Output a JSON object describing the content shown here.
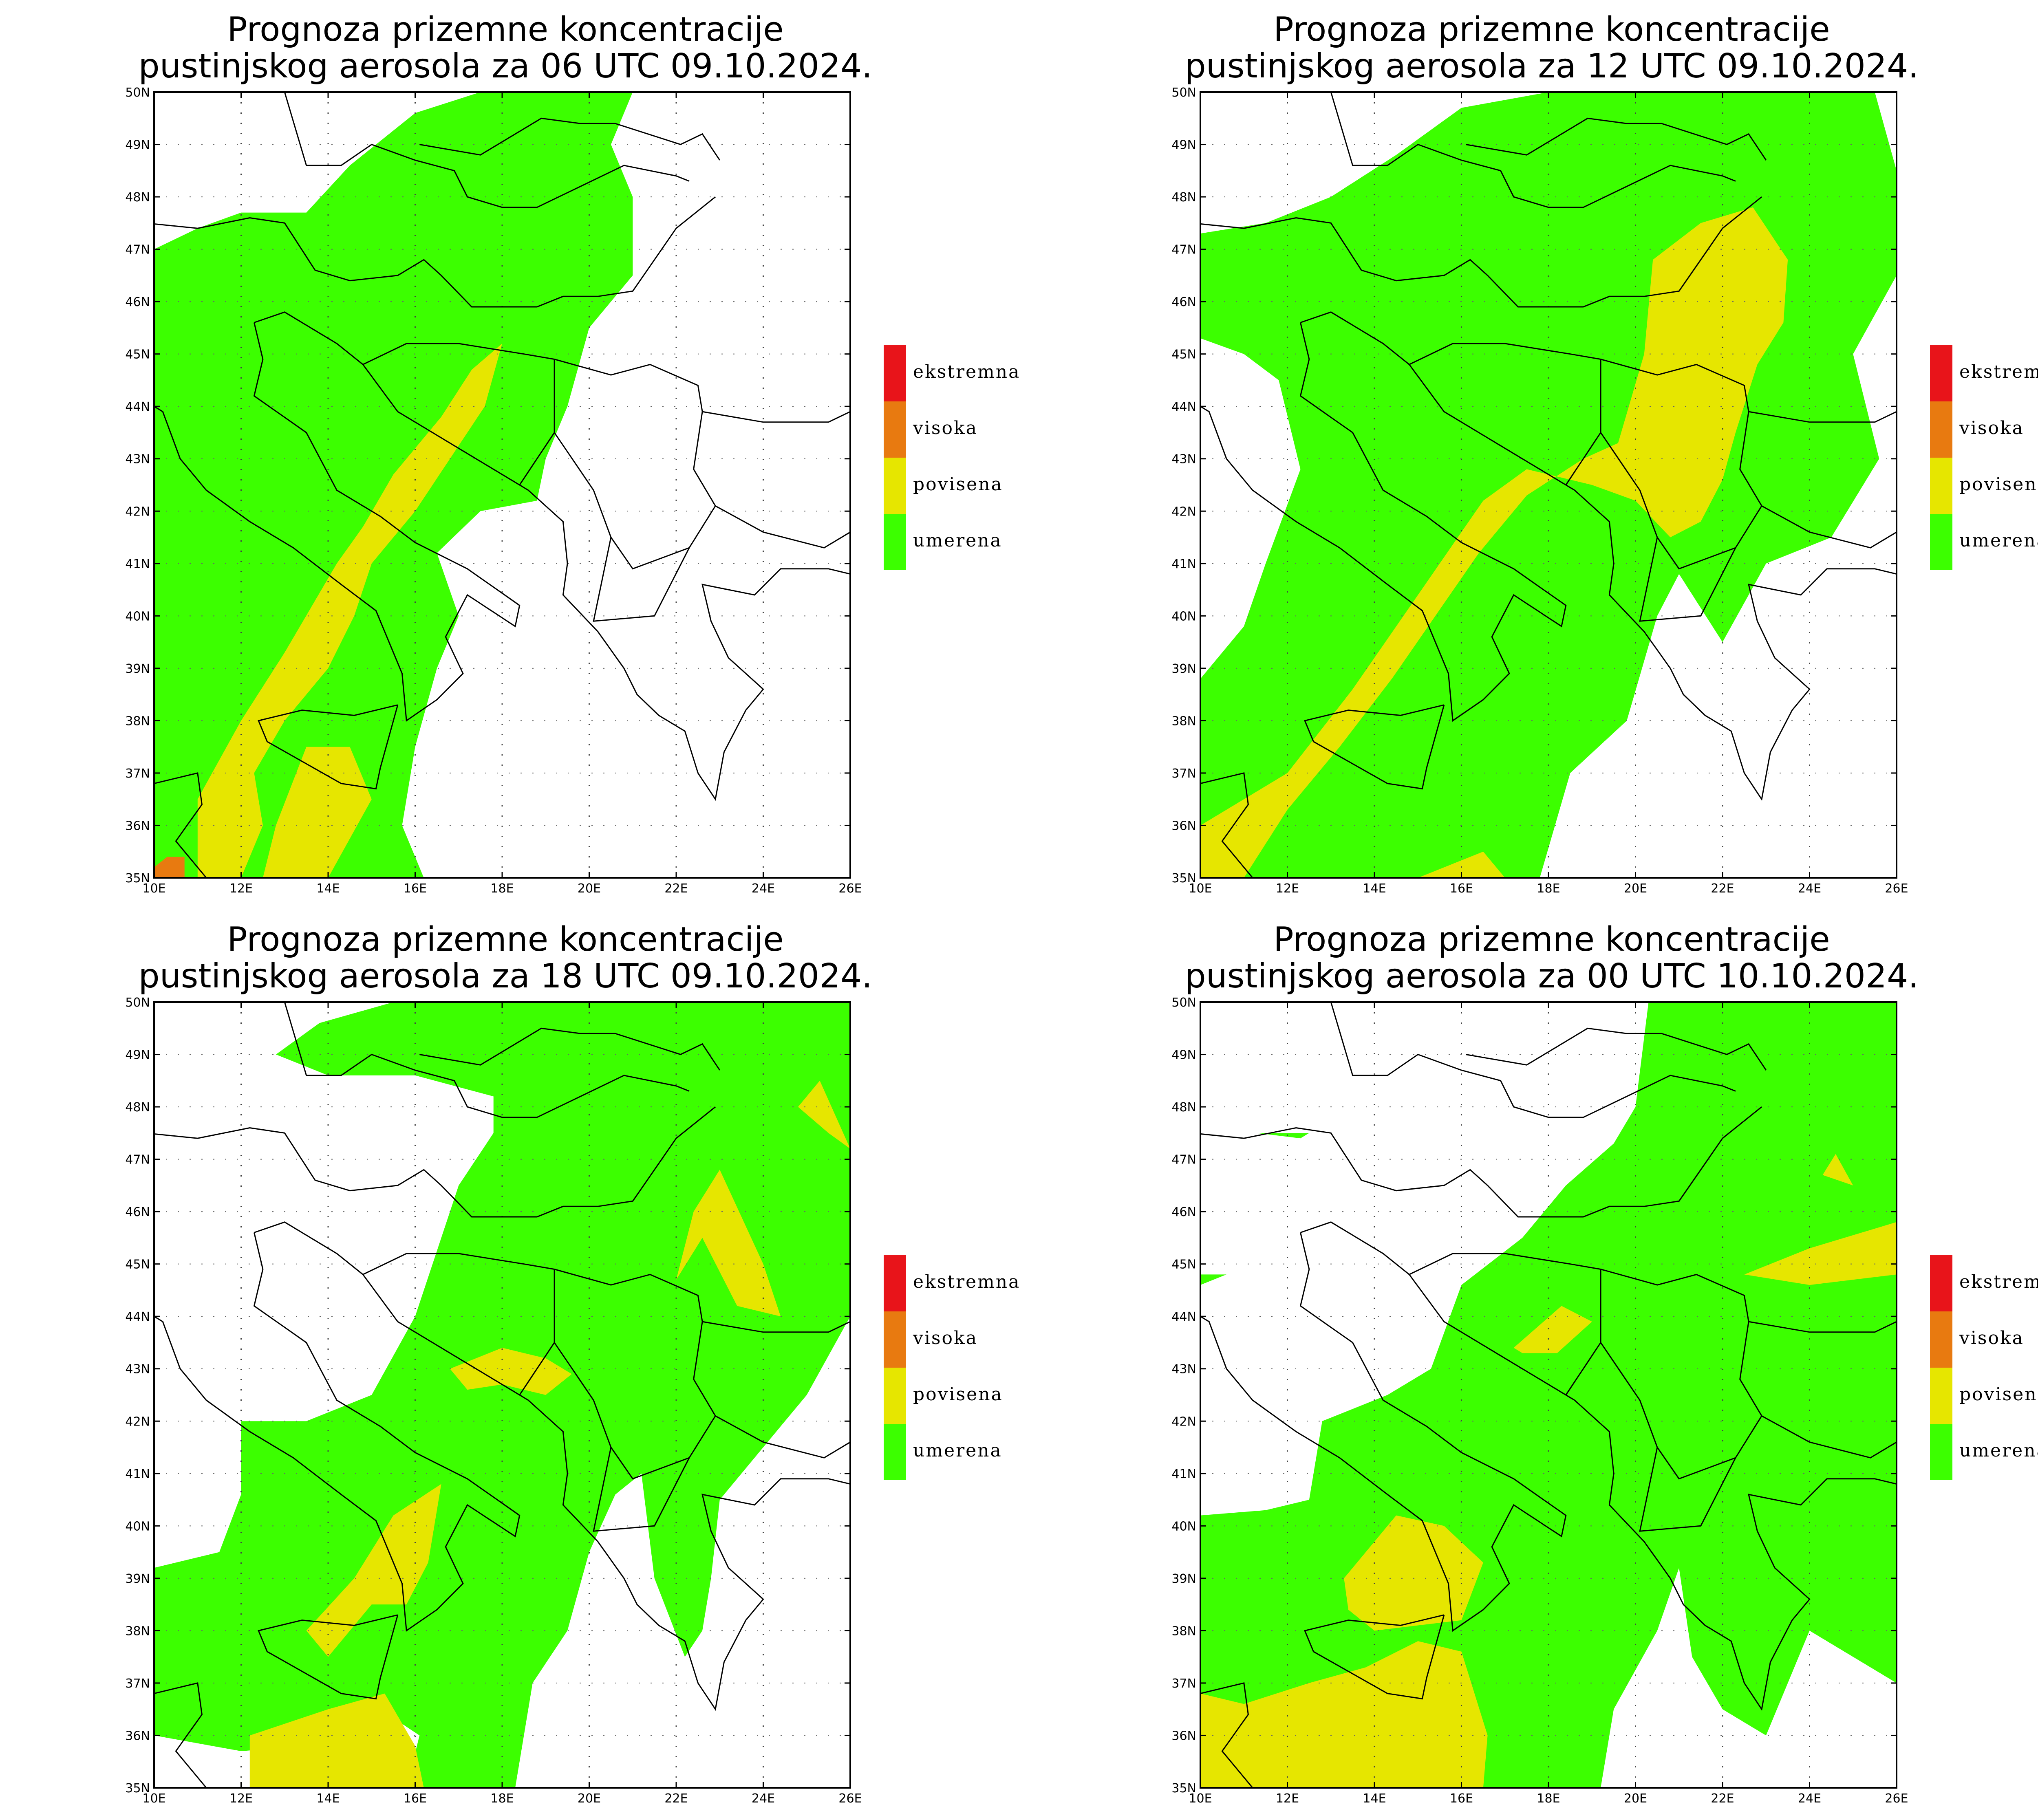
{
  "panels": [
    {
      "title_line1": "Prognoza prizemne koncentracije",
      "title_line2": "pustinjskog aerosola za 06 UTC 09.10.2024."
    },
    {
      "title_line1": "Prognoza prizemne koncentracije",
      "title_line2": "pustinjskog aerosola za 12 UTC 09.10.2024."
    },
    {
      "title_line1": "Prognoza prizemne koncentracije",
      "title_line2": "pustinjskog aerosola za 18 UTC 09.10.2024."
    },
    {
      "title_line1": "Prognoza prizemne koncentracije",
      "title_line2": "pustinjskog aerosola za 00 UTC 10.10.2024."
    }
  ],
  "axes": {
    "lat_labels": [
      "50N",
      "49N",
      "48N",
      "47N",
      "46N",
      "45N",
      "44N",
      "43N",
      "42N",
      "41N",
      "40N",
      "39N",
      "38N",
      "37N",
      "36N",
      "35N"
    ],
    "lon_labels": [
      "10E",
      "12E",
      "14E",
      "16E",
      "18E",
      "20E",
      "22E",
      "24E",
      "26E"
    ],
    "lat_range": [
      35,
      50
    ],
    "lon_range": [
      10,
      26
    ]
  },
  "legend": [
    {
      "label": "ekstremna",
      "color": "#e8141a"
    },
    {
      "label": "visoka",
      "color": "#e87a10"
    },
    {
      "label": "povisena",
      "color": "#e6e600"
    },
    {
      "label": "umerena",
      "color": "#3cff00"
    }
  ],
  "colors": {
    "umerena": "#3cff00",
    "povisena": "#e6e600",
    "visoka": "#e87a10",
    "ekstremna": "#e8141a",
    "land_outline": "#000000",
    "water": "#ffffff"
  }
}
